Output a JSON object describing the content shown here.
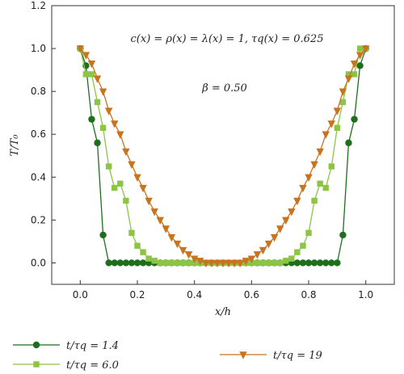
{
  "chart_data": {
    "type": "line",
    "xlabel": "x/h",
    "ylabel": "T/T₀",
    "xlim": [
      -0.1,
      1.1
    ],
    "ylim": [
      -0.1,
      1.2
    ],
    "xticks": [
      0.0,
      0.2,
      0.4,
      0.6,
      0.8,
      1.0
    ],
    "yticks": [
      0.0,
      0.2,
      0.4,
      0.6,
      0.8,
      1.0,
      1.2
    ],
    "xtick_labels": [
      "0.0",
      "0.2",
      "0.4",
      "0.6",
      "0.8",
      "1.0"
    ],
    "ytick_labels": [
      "0.0",
      "0.2",
      "0.4",
      "0.6",
      "0.8",
      "1.0",
      "1.2"
    ],
    "grid": false,
    "legend_position": "bottom",
    "annotations": [
      "c(x) = ρ(x) = λ(x) = 1, τq(x) = 0.625",
      "β = 0.50"
    ],
    "series": [
      {
        "name": "t/τq = 1.4",
        "marker": "circle",
        "color": "#1e6e1e",
        "x": [
          0.0,
          0.02,
          0.04,
          0.06,
          0.08,
          0.1,
          0.12,
          0.14,
          0.16,
          0.18,
          0.2,
          0.22,
          0.24,
          0.26,
          0.28,
          0.3,
          0.32,
          0.34,
          0.36,
          0.38,
          0.4,
          0.42,
          0.44,
          0.46,
          0.48,
          0.5,
          0.52,
          0.54,
          0.56,
          0.58,
          0.6,
          0.62,
          0.64,
          0.66,
          0.68,
          0.7,
          0.72,
          0.74,
          0.76,
          0.78,
          0.8,
          0.82,
          0.84,
          0.86,
          0.88,
          0.9,
          0.92,
          0.94,
          0.96,
          0.98,
          1.0
        ],
        "y": [
          1.0,
          0.92,
          0.67,
          0.56,
          0.13,
          0.0,
          0.0,
          0.0,
          0.0,
          0.0,
          0.0,
          0.0,
          0.0,
          0.0,
          0.0,
          0.0,
          0.0,
          0.0,
          0.0,
          0.0,
          0.0,
          0.0,
          0.0,
          0.0,
          0.0,
          0.0,
          0.0,
          0.0,
          0.0,
          0.0,
          0.0,
          0.0,
          0.0,
          0.0,
          0.0,
          0.0,
          0.0,
          0.0,
          0.0,
          0.0,
          0.0,
          0.0,
          0.0,
          0.0,
          0.0,
          0.0,
          0.13,
          0.56,
          0.67,
          0.92,
          1.0
        ]
      },
      {
        "name": "t/τq = 6.0",
        "marker": "square",
        "color": "#8cc444",
        "x": [
          0.0,
          0.02,
          0.04,
          0.06,
          0.08,
          0.1,
          0.12,
          0.14,
          0.16,
          0.18,
          0.2,
          0.22,
          0.24,
          0.26,
          0.28,
          0.3,
          0.32,
          0.34,
          0.36,
          0.38,
          0.4,
          0.42,
          0.44,
          0.46,
          0.48,
          0.5,
          0.52,
          0.54,
          0.56,
          0.58,
          0.6,
          0.62,
          0.64,
          0.66,
          0.68,
          0.7,
          0.72,
          0.74,
          0.76,
          0.78,
          0.8,
          0.82,
          0.84,
          0.86,
          0.88,
          0.9,
          0.92,
          0.94,
          0.96,
          0.98,
          1.0
        ],
        "y": [
          1.0,
          0.88,
          0.88,
          0.75,
          0.63,
          0.45,
          0.35,
          0.37,
          0.29,
          0.14,
          0.08,
          0.05,
          0.02,
          0.01,
          0.0,
          0.0,
          0.0,
          0.0,
          0.0,
          0.0,
          0.0,
          0.0,
          0.0,
          0.0,
          0.0,
          0.0,
          0.0,
          0.0,
          0.0,
          0.0,
          0.0,
          0.0,
          0.0,
          0.0,
          0.0,
          0.0,
          0.01,
          0.02,
          0.05,
          0.08,
          0.14,
          0.29,
          0.37,
          0.35,
          0.45,
          0.63,
          0.75,
          0.88,
          0.88,
          1.0,
          1.0
        ]
      },
      {
        "name": "t/τq = 19",
        "marker": "triangle-down",
        "color": "#c8741e",
        "x": [
          0.0,
          0.02,
          0.04,
          0.06,
          0.08,
          0.1,
          0.12,
          0.14,
          0.16,
          0.18,
          0.2,
          0.22,
          0.24,
          0.26,
          0.28,
          0.3,
          0.32,
          0.34,
          0.36,
          0.38,
          0.4,
          0.42,
          0.44,
          0.46,
          0.48,
          0.5,
          0.52,
          0.54,
          0.56,
          0.58,
          0.6,
          0.62,
          0.64,
          0.66,
          0.68,
          0.7,
          0.72,
          0.74,
          0.76,
          0.78,
          0.8,
          0.82,
          0.84,
          0.86,
          0.88,
          0.9,
          0.92,
          0.94,
          0.96,
          0.98,
          1.0
        ],
        "y": [
          1.0,
          0.97,
          0.93,
          0.86,
          0.8,
          0.71,
          0.65,
          0.6,
          0.52,
          0.46,
          0.4,
          0.35,
          0.29,
          0.24,
          0.2,
          0.16,
          0.12,
          0.09,
          0.06,
          0.04,
          0.02,
          0.01,
          0.0,
          0.0,
          0.0,
          0.0,
          0.0,
          0.0,
          0.0,
          0.01,
          0.02,
          0.04,
          0.06,
          0.09,
          0.12,
          0.16,
          0.2,
          0.24,
          0.29,
          0.35,
          0.4,
          0.46,
          0.52,
          0.6,
          0.65,
          0.71,
          0.8,
          0.86,
          0.93,
          0.97,
          1.0
        ]
      }
    ]
  }
}
